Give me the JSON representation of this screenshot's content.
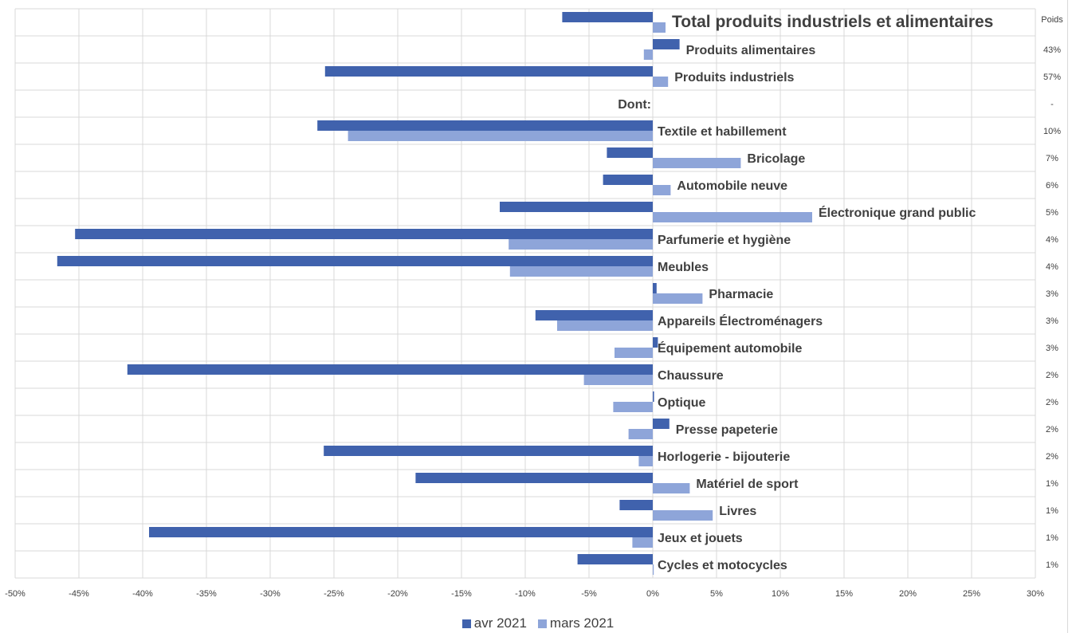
{
  "chart_data": {
    "type": "bar",
    "orientation": "horizontal",
    "categories": [
      "Total produits industriels et alimentaires",
      "Produits alimentaires",
      "Produits industriels",
      "Dont:",
      "Textile et habillement",
      "Bricolage",
      "Automobile neuve",
      "Électronique grand public",
      "Parfumerie et hygiène",
      "Meubles",
      "Pharmacie",
      "Appareils Électroménagers",
      "Équipement automobile",
      "Chaussure",
      "Optique",
      "Presse papeterie",
      "Horlogerie - bijouterie",
      "Matériel de sport",
      "Livres",
      "Jeux et jouets",
      "Cycles et motocycles"
    ],
    "series": [
      {
        "name": "avr 2021",
        "color": "#4062ad",
        "values": [
          -7.1,
          2.1,
          -25.7,
          null,
          -26.3,
          -3.6,
          -3.9,
          -12.0,
          -45.3,
          -46.7,
          0.3,
          -9.2,
          0.4,
          -41.2,
          0.1,
          1.3,
          -25.8,
          -18.6,
          -2.6,
          -39.5,
          -5.9
        ]
      },
      {
        "name": "mars 2021",
        "color": "#8ea5d9",
        "values": [
          1.0,
          -0.7,
          1.2,
          null,
          -23.9,
          6.9,
          1.4,
          12.5,
          -11.3,
          -11.2,
          3.9,
          -7.5,
          -3.0,
          -5.4,
          -3.1,
          -1.9,
          -1.1,
          2.9,
          4.7,
          -1.6,
          0.0
        ]
      }
    ],
    "weight_header": "Poids",
    "weights": [
      "",
      "43%",
      "57%",
      "-",
      "10%",
      "7%",
      "6%",
      "5%",
      "4%",
      "4%",
      "3%",
      "3%",
      "3%",
      "2%",
      "2%",
      "2%",
      "2%",
      "1%",
      "1%",
      "1%",
      "1%"
    ],
    "xlim": [
      -50,
      30
    ],
    "xticks": [
      -50,
      -45,
      -40,
      -35,
      -30,
      -25,
      -20,
      -15,
      -10,
      -5,
      0,
      5,
      10,
      15,
      20,
      25,
      30
    ],
    "tick_format": "percent",
    "grid": true,
    "legend": "bottom",
    "title": "",
    "xlabel": "",
    "ylabel": ""
  }
}
